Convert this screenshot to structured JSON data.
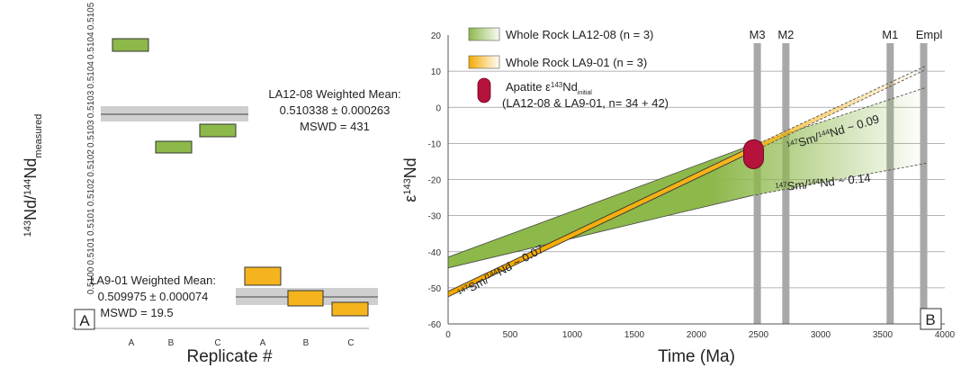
{
  "chart_data": [
    {
      "panel": "A",
      "type": "scatter",
      "xlabel": "Replicate #",
      "ylabel_html": {
        "sup": "143",
        "a": "Nd/",
        "sup2": "144",
        "b": "Nd",
        "sub": "measured"
      },
      "ylim": [
        0.50995,
        0.5105
      ],
      "yticks": [
        "0.5100",
        "0.5101",
        "0.5101",
        "0.5102",
        "0.5102",
        "0.5103",
        "0.5103",
        "0.5104",
        "0.5104",
        "0.5105"
      ],
      "groups": [
        {
          "name": "LA12-08",
          "color": "#8db84a",
          "points": [
            {
              "x": "A",
              "value": 0.510447
            },
            {
              "x": "B",
              "value": 0.510272
            },
            {
              "x": "C",
              "value": 0.5103
            }
          ],
          "mean": 0.510338,
          "mean_label": [
            "LA12-08 Weighted Mean:",
            "0.510338 ± 0.000263",
            "MSWD = 431"
          ]
        },
        {
          "name": "LA9-01",
          "color": "#f5b41e",
          "points": [
            {
              "x": "A",
              "value": 0.510015
            },
            {
              "x": "B",
              "value": 0.509975
            },
            {
              "x": "C",
              "value": 0.509945
            }
          ],
          "mean": 0.509975,
          "mean_label": [
            "LA9-01 Weighted Mean:",
            "0.509975 ± 0.000074",
            "MSWD = 19.5"
          ]
        }
      ],
      "panel_label": "A"
    },
    {
      "panel": "B",
      "type": "area",
      "xlabel": "Time (Ma)",
      "ylabel_main": "ε",
      "ylabel_sup": "143",
      "ylabel_tail": "Nd",
      "xlim": [
        0,
        4000
      ],
      "ylim": [
        -60,
        20
      ],
      "xticks": [
        0,
        500,
        1000,
        1500,
        2000,
        2500,
        3000,
        3500,
        4000
      ],
      "yticks": [
        -60,
        -50,
        -40,
        -30,
        -20,
        -10,
        0,
        10,
        20
      ],
      "events": [
        {
          "label": "M3",
          "x": 2490
        },
        {
          "label": "M2",
          "x": 2720
        },
        {
          "label": "M1",
          "x": 3560
        },
        {
          "label": "Empl",
          "x": 3830
        }
      ],
      "whole_rock_LA12_08": {
        "upper": [
          [
            0,
            -41.5
          ],
          [
            2440,
            -10.5
          ]
        ],
        "lower": [
          [
            0,
            -44.5
          ],
          [
            2440,
            -24.5
          ]
        ],
        "extension_upper": [
          [
            2440,
            -10.5
          ],
          [
            3850,
            5.5
          ]
        ],
        "extension_lower": [
          [
            2440,
            -24.5
          ],
          [
            3850,
            -15.5
          ]
        ]
      },
      "whole_rock_LA9_01": {
        "upper": [
          [
            0,
            -51
          ],
          [
            2440,
            -11
          ]
        ],
        "lower": [
          [
            0,
            -52.5
          ],
          [
            2440,
            -12.5
          ]
        ],
        "extension_upper": [
          [
            2440,
            -11
          ],
          [
            3850,
            11.5
          ]
        ],
        "extension_lower": [
          [
            2440,
            -12.5
          ],
          [
            3850,
            10.5
          ]
        ]
      },
      "apatite": {
        "x": 2460,
        "y_min": -17,
        "y_max": -9,
        "color": "#b5123c"
      },
      "legend": [
        {
          "key": "wr1208",
          "text": "Whole Rock LA12-08 (n = 3)"
        },
        {
          "key": "wr901",
          "text": "Whole Rock LA9-01 (n = 3)"
        },
        {
          "key": "apatite",
          "text": "Apatite ε",
          "sup": "143",
          "tail": "Nd",
          "sub": "initial",
          "line2": "(LA12-08 & LA9-01, n= 34 + 42)"
        }
      ],
      "annotations": [
        {
          "pre": "147",
          "a": "Sm/",
          "mid": "144",
          "b": "Nd ~ 0.07"
        },
        {
          "pre": "147",
          "a": "Sm/",
          "mid": "144",
          "b": "Nd ~ 0.09"
        },
        {
          "pre": "147",
          "a": "Sm/",
          "mid": "144",
          "b": "Nd ~ 0.14"
        }
      ],
      "panel_label": "B"
    }
  ]
}
